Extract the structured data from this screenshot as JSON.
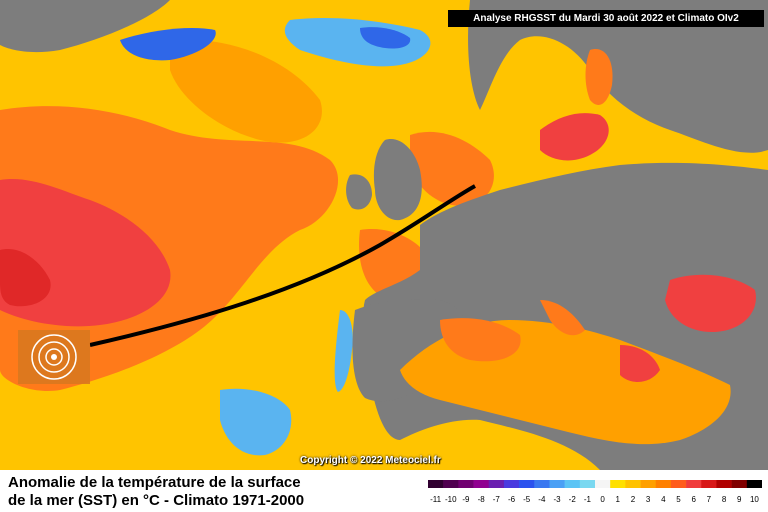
{
  "header": {
    "analysis_label": "Analyse RHGSST  du Mardi 30 août 2022 et Climato OIv2"
  },
  "map": {
    "copyright": "Copyright © 2022 Meteociel.fr"
  },
  "footer": {
    "title_line1": "Anomalie de la température de la surface",
    "title_line2": "de la mer (SST) en °C - Climato 1971-2000"
  },
  "legend": {
    "labels": [
      "-11",
      "-10",
      "-9",
      "-8",
      "-7",
      "-6",
      "-5",
      "-4",
      "-3",
      "-2",
      "-1",
      "0",
      "1",
      "2",
      "3",
      "4",
      "5",
      "6",
      "7",
      "8",
      "9",
      "10"
    ],
    "colors": [
      "#300030",
      "#500050",
      "#700070",
      "#900090",
      "#6a1fb0",
      "#4a3adf",
      "#2b52ee",
      "#3a78f0",
      "#4aa0f5",
      "#5bc4f5",
      "#7ad8f0",
      "#f5f5f5",
      "#ffe000",
      "#ffc200",
      "#ffa000",
      "#ff8000",
      "#ff5c1c",
      "#f03c3c",
      "#d81818",
      "#b00000",
      "#800000",
      "#000000"
    ]
  },
  "colors": {
    "land": "#7d7d7d",
    "ocean_warm_1": "#ffc400",
    "ocean_warm_2": "#ffa000",
    "ocean_warm_3": "#ff7a1a",
    "ocean_warm_4": "#f04040",
    "ocean_cool_1": "#ffe200",
    "ocean_cold_1": "#5ab4f0",
    "ocean_cold_2": "#2f67e8"
  }
}
